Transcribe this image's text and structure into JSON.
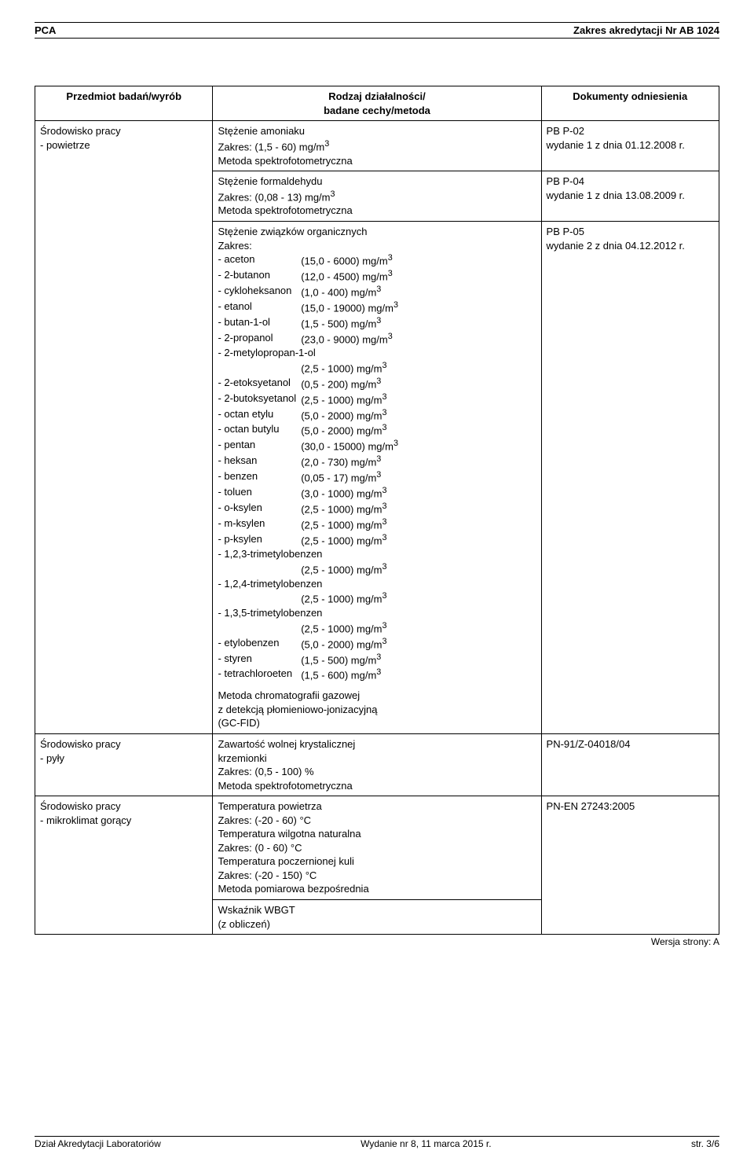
{
  "header": {
    "left": "PCA",
    "right": "Zakres akredytacji Nr AB 1024"
  },
  "table": {
    "headers": {
      "subject": "Przedmiot badań/wyrób",
      "method_line1": "Rodzaj działalności/",
      "method_line2": "badane cechy/metoda",
      "reference": "Dokumenty odniesienia"
    },
    "rows": [
      {
        "subject_l1": "Środowisko pracy",
        "subject_l2": "- powietrze",
        "cells": [
          {
            "method": {
              "l1": "Stężenie amoniaku",
              "l2": "Zakres: (1,5 - 60) mg/m",
              "sup2": "3",
              "l3": "Metoda spektrofotometryczna"
            },
            "ref": {
              "l1": "PB P-02",
              "l2": "wydanie 1 z dnia 01.12.2008 r."
            }
          },
          {
            "method": {
              "l1": "Stężenie formaldehydu",
              "l2": "Zakres: (0,08 - 13) mg/m",
              "sup2": "3",
              "l3": "Metoda spektrofotometryczna"
            },
            "ref": {
              "l1": "PB P-04",
              "l2": "wydanie 1 z dnia 13.08.2009 r."
            }
          },
          {
            "method": {
              "title": "Stężenie związków organicznych",
              "zakres": "Zakres:",
              "compounds": [
                {
                  "name": "- aceton",
                  "val": "(15,0 - 6000) mg/m",
                  "sup": "3"
                },
                {
                  "name": "- 2-butanon",
                  "val": "(12,0 - 4500) mg/m",
                  "sup": "3"
                },
                {
                  "name": "- cykloheksanon",
                  "val": "(1,0 - 400) mg/m",
                  "sup": "3"
                },
                {
                  "name": "- etanol",
                  "val": "(15,0 - 19000) mg/m",
                  "sup": "3"
                },
                {
                  "name": "- butan-1-ol",
                  "val": "(1,5 - 500) mg/m",
                  "sup": "3"
                },
                {
                  "name": "- 2-propanol",
                  "val": "(23,0 - 9000) mg/m",
                  "sup": "3"
                },
                {
                  "full": "- 2-metylopropan-1-ol",
                  "valline": "(2,5 - 1000) mg/m",
                  "sup": "3"
                },
                {
                  "name": "- 2-etoksyetanol",
                  "val": "(0,5 - 200) mg/m",
                  "sup": "3"
                },
                {
                  "name": "- 2-butoksyetanol",
                  "val": "(2,5 - 1000) mg/m",
                  "sup": "3"
                },
                {
                  "name": "- octan etylu",
                  "val": "(5,0 - 2000) mg/m",
                  "sup": "3"
                },
                {
                  "name": "- octan butylu",
                  "val": "(5,0 - 2000) mg/m",
                  "sup": "3"
                },
                {
                  "name": "- pentan",
                  "val": "(30,0 - 15000) mg/m",
                  "sup": "3"
                },
                {
                  "name": "- heksan",
                  "val": "(2,0 - 730) mg/m",
                  "sup": "3"
                },
                {
                  "name": "- benzen",
                  "val": "(0,05 - 17) mg/m",
                  "sup": "3"
                },
                {
                  "name": "- toluen",
                  "val": "(3,0 - 1000) mg/m",
                  "sup": "3"
                },
                {
                  "name": "- o-ksylen",
                  "val": "(2,5 - 1000) mg/m",
                  "sup": "3"
                },
                {
                  "name": "- m-ksylen",
                  "val": "(2,5 - 1000) mg/m",
                  "sup": "3"
                },
                {
                  "name": "- p-ksylen",
                  "val": "(2,5 - 1000) mg/m",
                  "sup": "3"
                },
                {
                  "full": "- 1,2,3-trimetylobenzen",
                  "valline": "(2,5 - 1000) mg/m",
                  "sup": "3"
                },
                {
                  "full": "- 1,2,4-trimetylobenzen",
                  "valline": "(2,5 - 1000) mg/m",
                  "sup": "3"
                },
                {
                  "full": "- 1,3,5-trimetylobenzen",
                  "valline": "(2,5 - 1000) mg/m",
                  "sup": "3"
                },
                {
                  "name": "- etylobenzen",
                  "val": "(5,0 - 2000) mg/m",
                  "sup": "3"
                },
                {
                  "name": "- styren",
                  "val": "(1,5 - 500) mg/m",
                  "sup": "3"
                },
                {
                  "name": "- tetrachloroeten",
                  "val": "(1,5 - 600) mg/m",
                  "sup": "3"
                }
              ],
              "tail1": "Metoda chromatografii gazowej",
              "tail2": "z detekcją płomieniowo-jonizacyjną",
              "tail3": "(GC-FID)"
            },
            "ref": {
              "l1": "PB P-05",
              "l2": "wydanie 2 z dnia 04.12.2012 r."
            }
          }
        ]
      },
      {
        "subject_l1": "Środowisko pracy",
        "subject_l2": "- pyły",
        "cells": [
          {
            "method": {
              "l1": "Zawartość wolnej krystalicznej",
              "l2": "krzemionki",
              "l3": "Zakres: (0,5 - 100) %",
              "l4": "Metoda spektrofotometryczna"
            },
            "ref": {
              "l1": "PN-91/Z-04018/04"
            }
          }
        ]
      },
      {
        "subject_l1": "Środowisko pracy",
        "subject_l2": "- mikroklimat gorący",
        "cells": [
          {
            "method": {
              "l1": "Temperatura powietrza",
              "l2": "Zakres: (-20 - 60) °C",
              "l3": "Temperatura wilgotna naturalna",
              "l4": "Zakres: (0 - 60) °C",
              "l5": "Temperatura poczernionej kuli",
              "l6": "Zakres: (-20 - 150) °C",
              "l7": "Metoda pomiarowa bezpośrednia"
            },
            "ref": {
              "l1": "PN-EN 27243:2005"
            }
          },
          {
            "method": {
              "l1": "Wskaźnik WBGT",
              "l2": "(z obliczeń)"
            },
            "ref": {}
          }
        ]
      }
    ]
  },
  "version_note": "Wersja strony: A",
  "footer": {
    "left": "Dział Akredytacji Laboratoriów",
    "center": "Wydanie nr 8, 11 marca 2015 r.",
    "right": "str. 3/6"
  }
}
